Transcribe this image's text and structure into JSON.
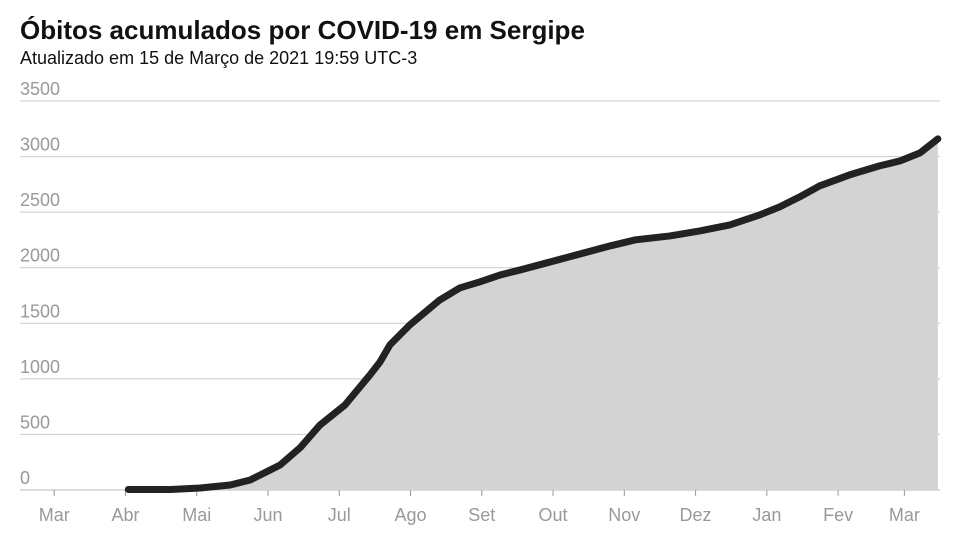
{
  "chart_data": {
    "type": "area",
    "title": "Óbitos acumulados por COVID-19 em Sergipe",
    "subtitle": "Atualizado em 15 de Março de 2021 19:59 UTC-3",
    "x": [
      1.04,
      1.63,
      2.05,
      2.47,
      2.75,
      2.89,
      3.17,
      3.45,
      3.73,
      4.08,
      4.43,
      4.57,
      4.71,
      4.99,
      5.41,
      5.69,
      5.97,
      6.26,
      6.54,
      6.96,
      7.38,
      7.8,
      8.15,
      8.64,
      9.06,
      9.48,
      9.9,
      10.18,
      10.46,
      10.74,
      11.16,
      11.58,
      11.87,
      12.15,
      12.4
    ],
    "series": [
      {
        "color": "#222222",
        "fill": "#d3d3d3",
        "values": [
          5,
          5,
          18,
          45,
          90,
          135,
          225,
          380,
          585,
          765,
          1035,
          1150,
          1305,
          1485,
          1710,
          1818,
          1872,
          1935,
          1980,
          2052,
          2124,
          2196,
          2250,
          2286,
          2331,
          2385,
          2475,
          2547,
          2637,
          2736,
          2835,
          2916,
          2961,
          3033,
          3159
        ]
      }
    ],
    "xlim": [
      -0.48,
      12.43
    ],
    "xticks": [
      {
        "value": 0,
        "label": "Mar"
      },
      {
        "value": 1,
        "label": "Abr"
      },
      {
        "value": 2,
        "label": "Mai"
      },
      {
        "value": 3,
        "label": "Jun"
      },
      {
        "value": 4,
        "label": "Jul"
      },
      {
        "value": 5,
        "label": "Ago"
      },
      {
        "value": 6,
        "label": "Set"
      },
      {
        "value": 7,
        "label": "Out"
      },
      {
        "value": 8,
        "label": "Nov"
      },
      {
        "value": 9,
        "label": "Dez"
      },
      {
        "value": 10,
        "label": "Jan"
      },
      {
        "value": 11,
        "label": "Fev"
      },
      {
        "value": 11.93,
        "label": "Mar"
      }
    ],
    "ylim": [
      0,
      3500
    ],
    "yticks": [
      0,
      500,
      1000,
      1500,
      2000,
      2500,
      3000,
      3500
    ],
    "grid": true
  }
}
